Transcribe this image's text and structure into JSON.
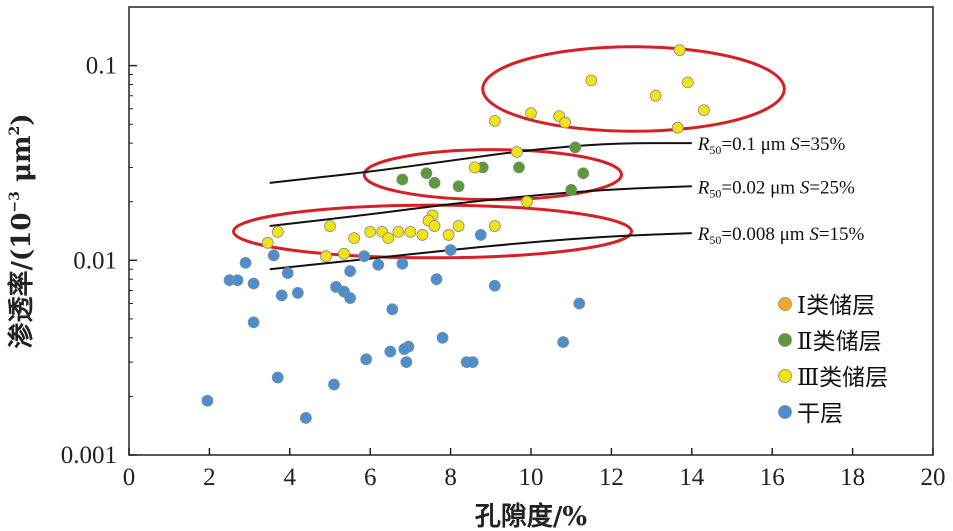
{
  "chart_data": {
    "type": "scatter",
    "xlabel": "孔隙度/%",
    "ylabel": {
      "prefix": "渗透率/(10",
      "sup1": "−3",
      "mid": " μm",
      "sup2": "2",
      "suffix": ")"
    },
    "x_ticks": [
      "0",
      "2",
      "4",
      "6",
      "8",
      "10",
      "12",
      "14",
      "16",
      "18",
      "20"
    ],
    "y_ticks": [
      {
        "value": 0.001,
        "label": "0.001"
      },
      {
        "value": 0.01,
        "label": "0.01"
      },
      {
        "value": 0.1,
        "label": "0.1"
      }
    ],
    "xlim": [
      0,
      20
    ],
    "ylim": [
      0.001,
      0.2
    ],
    "y_scale": "log",
    "grid": false,
    "legend_position": "bottom-right",
    "series": [
      {
        "name": "Ⅰ类储层",
        "color": "#f5a623",
        "points": []
      },
      {
        "name": "Ⅱ类储层",
        "color": "#5a9a3a",
        "points": [
          [
            6.8,
            0.026
          ],
          [
            7.4,
            0.028
          ],
          [
            7.6,
            0.025
          ],
          [
            8.2,
            0.024
          ],
          [
            8.8,
            0.03
          ],
          [
            9.7,
            0.03
          ],
          [
            11.0,
            0.023
          ],
          [
            11.1,
            0.038
          ],
          [
            11.3,
            0.028
          ]
        ]
      },
      {
        "name": "Ⅲ类储层",
        "color": "#f2e313",
        "points": [
          [
            13.7,
            0.12
          ],
          [
            11.5,
            0.084
          ],
          [
            13.9,
            0.082
          ],
          [
            13.1,
            0.07
          ],
          [
            14.3,
            0.059
          ],
          [
            10.0,
            0.057
          ],
          [
            10.7,
            0.055
          ],
          [
            10.85,
            0.051
          ],
          [
            9.1,
            0.052
          ],
          [
            13.65,
            0.048
          ],
          [
            9.65,
            0.036
          ],
          [
            8.6,
            0.03
          ],
          [
            9.9,
            0.02
          ],
          [
            7.55,
            0.017
          ],
          [
            7.45,
            0.016
          ],
          [
            8.2,
            0.015
          ],
          [
            9.1,
            0.015
          ],
          [
            7.6,
            0.015
          ],
          [
            5.0,
            0.015
          ],
          [
            3.7,
            0.014
          ],
          [
            6.3,
            0.014
          ],
          [
            6.7,
            0.014
          ],
          [
            7.0,
            0.014
          ],
          [
            6.0,
            0.014
          ],
          [
            6.45,
            0.013
          ],
          [
            7.95,
            0.0135
          ],
          [
            5.6,
            0.013
          ],
          [
            7.3,
            0.0135
          ],
          [
            3.45,
            0.0123
          ],
          [
            5.35,
            0.0108
          ],
          [
            4.9,
            0.0105
          ]
        ]
      },
      {
        "name": "干层",
        "color": "#4a90d0",
        "points": [
          [
            3.6,
            0.0106
          ],
          [
            5.85,
            0.0105
          ],
          [
            8.75,
            0.0135
          ],
          [
            8.0,
            0.0113
          ],
          [
            2.9,
            0.0097
          ],
          [
            6.2,
            0.0095
          ],
          [
            6.8,
            0.0096
          ],
          [
            5.5,
            0.0088
          ],
          [
            3.95,
            0.0086
          ],
          [
            7.65,
            0.008
          ],
          [
            2.5,
            0.0079
          ],
          [
            2.7,
            0.0079
          ],
          [
            3.1,
            0.0076
          ],
          [
            5.15,
            0.0073
          ],
          [
            5.35,
            0.0069
          ],
          [
            9.1,
            0.0074
          ],
          [
            4.2,
            0.0068
          ],
          [
            3.8,
            0.0066
          ],
          [
            5.5,
            0.0064
          ],
          [
            11.2,
            0.006
          ],
          [
            6.55,
            0.0056
          ],
          [
            3.1,
            0.0048
          ],
          [
            7.8,
            0.004
          ],
          [
            10.8,
            0.0038
          ],
          [
            6.95,
            0.0036
          ],
          [
            6.85,
            0.0035
          ],
          [
            6.5,
            0.0034
          ],
          [
            5.9,
            0.0031
          ],
          [
            6.9,
            0.003
          ],
          [
            8.4,
            0.003
          ],
          [
            8.55,
            0.003
          ],
          [
            3.7,
            0.0025
          ],
          [
            5.1,
            0.0023
          ],
          [
            1.95,
            0.0019
          ],
          [
            4.4,
            0.00155
          ]
        ]
      }
    ],
    "curves": [
      {
        "label_parts": [
          "R",
          "50",
          "=0.1 μm ",
          "S",
          "=35%"
        ],
        "points": [
          [
            3.5,
            0.025
          ],
          [
            6.0,
            0.0285
          ],
          [
            8.0,
            0.0325
          ],
          [
            10.0,
            0.037
          ],
          [
            12.0,
            0.04
          ],
          [
            14.0,
            0.04
          ]
        ]
      },
      {
        "label_parts": [
          "R",
          "50",
          "=0.02 μm ",
          "S",
          "=25%"
        ],
        "points": [
          [
            3.5,
            0.015
          ],
          [
            6.0,
            0.0172
          ],
          [
            8.0,
            0.0195
          ],
          [
            10.0,
            0.0215
          ],
          [
            12.0,
            0.0232
          ],
          [
            14.0,
            0.024
          ]
        ]
      },
      {
        "label_parts": [
          "R",
          "50",
          "=0.008 μm ",
          "S",
          "=15%"
        ],
        "points": [
          [
            3.5,
            0.009
          ],
          [
            6.0,
            0.0102
          ],
          [
            8.0,
            0.0113
          ],
          [
            10.0,
            0.0124
          ],
          [
            12.0,
            0.0133
          ],
          [
            14.0,
            0.0138
          ]
        ]
      }
    ],
    "ellipses": [
      {
        "cx": 12.55,
        "cy": 0.081,
        "rx": 3.75,
        "ry_top": 0.125,
        "ry_bottom": 0.046
      },
      {
        "cx": 9.05,
        "cy": 0.0268,
        "rx": 3.2,
        "ry_top": 0.037,
        "ry_bottom": 0.0205
      },
      {
        "cx": 7.55,
        "cy": 0.0148,
        "rx": 4.95,
        "ry_top": 0.0192,
        "ry_bottom": 0.0103
      }
    ],
    "ellipse_color": "#d62027"
  }
}
